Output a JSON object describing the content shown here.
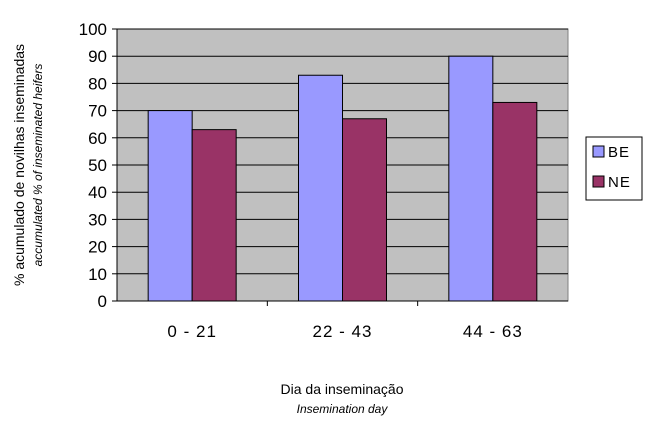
{
  "chart_data": {
    "type": "bar",
    "categories": [
      "0 - 21",
      "22 - 43",
      "44 - 63"
    ],
    "series": [
      {
        "name": "BE",
        "values": [
          70,
          83,
          90
        ],
        "color": "#9999ff"
      },
      {
        "name": "NE",
        "values": [
          63,
          67,
          73
        ],
        "color": "#993366"
      }
    ],
    "ylim": [
      0,
      100
    ],
    "yticks": [
      0,
      10,
      20,
      30,
      40,
      50,
      60,
      70,
      80,
      90,
      100
    ],
    "ylabel": "% acumulado de novilhas inseminadas",
    "ylabel_en": "accumulated % of inseminated heifers",
    "xlabel": "Dia da inseminação",
    "xlabel_en": "Insemination day",
    "legend_position": "right",
    "grid": true,
    "plot_background": "#c0c0c0"
  }
}
